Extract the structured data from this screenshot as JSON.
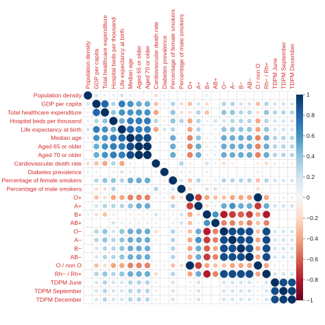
{
  "chart_data": {
    "type": "heatmap",
    "title": "",
    "labels": [
      "Population density",
      "GDP per capita",
      "Total healthcare expenditure",
      "Hospital beds per thousand",
      "Life expectancy at birth",
      "Median age",
      "Aged 65 or older",
      "Aged 70 or older",
      "Cardiovascular death rate",
      "Diabetes prevalence",
      "Percentage of female smokers",
      "Percentage of male smokers",
      "O+",
      "A+",
      "B+",
      "AB+",
      "O−",
      "A−",
      "B−",
      "AB−",
      "O / non O",
      "Rh− / Rh+",
      "TDPM June",
      "TDPM September",
      "TDPM December"
    ],
    "matrix": [
      [
        1.0,
        0.2,
        0.1,
        0.1,
        0.2,
        0.1,
        0.0,
        0.0,
        -0.2,
        0.1,
        0.0,
        0.0,
        0.0,
        0.0,
        0.1,
        0.0,
        0.0,
        0.0,
        0.0,
        0.0,
        0.0,
        0.0,
        0.0,
        0.0,
        0.0
      ],
      [
        0.2,
        1.0,
        0.8,
        0.3,
        0.7,
        0.6,
        0.5,
        0.5,
        -0.3,
        0.1,
        0.3,
        -0.2,
        -0.3,
        0.2,
        -0.2,
        0.0,
        0.3,
        0.3,
        0.2,
        0.2,
        -0.3,
        0.3,
        0.2,
        0.2,
        0.2
      ],
      [
        0.1,
        0.8,
        1.0,
        0.4,
        0.6,
        0.6,
        0.6,
        0.6,
        -0.4,
        0.0,
        0.4,
        -0.2,
        -0.2,
        0.3,
        -0.3,
        0.0,
        0.4,
        0.4,
        0.3,
        0.3,
        -0.2,
        0.4,
        0.3,
        0.3,
        0.3
      ],
      [
        0.1,
        0.3,
        0.4,
        1.0,
        0.5,
        0.7,
        0.7,
        0.7,
        0.3,
        -0.1,
        0.4,
        0.3,
        -0.4,
        0.3,
        0.1,
        0.2,
        0.2,
        0.3,
        0.3,
        0.3,
        -0.4,
        0.3,
        0.2,
        0.2,
        0.2
      ],
      [
        0.2,
        0.7,
        0.6,
        0.5,
        1.0,
        0.8,
        0.7,
        0.7,
        -0.4,
        0.2,
        0.3,
        0.0,
        -0.4,
        0.3,
        0.0,
        0.1,
        0.4,
        0.4,
        0.4,
        0.4,
        -0.4,
        0.4,
        0.2,
        0.2,
        0.2
      ],
      [
        0.1,
        0.6,
        0.6,
        0.7,
        0.8,
        1.0,
        0.9,
        0.9,
        -0.1,
        0.1,
        0.5,
        0.1,
        -0.5,
        0.4,
        -0.1,
        0.1,
        0.5,
        0.5,
        0.5,
        0.5,
        -0.5,
        0.5,
        0.3,
        0.3,
        0.3
      ],
      [
        0.0,
        0.5,
        0.6,
        0.7,
        0.7,
        0.9,
        1.0,
        1.0,
        0.0,
        0.0,
        0.5,
        0.1,
        -0.5,
        0.5,
        -0.1,
        0.1,
        0.5,
        0.5,
        0.5,
        0.5,
        -0.5,
        0.5,
        0.3,
        0.3,
        0.3
      ],
      [
        0.0,
        0.5,
        0.6,
        0.7,
        0.7,
        0.9,
        1.0,
        1.0,
        0.0,
        0.0,
        0.5,
        0.1,
        -0.5,
        0.5,
        -0.1,
        0.1,
        0.5,
        0.5,
        0.5,
        0.5,
        -0.5,
        0.5,
        0.3,
        0.3,
        0.3
      ],
      [
        -0.2,
        -0.3,
        -0.4,
        0.3,
        -0.4,
        -0.1,
        0.0,
        0.0,
        1.0,
        0.1,
        0.0,
        0.3,
        -0.1,
        0.0,
        0.2,
        0.1,
        -0.2,
        -0.1,
        0.0,
        0.0,
        -0.1,
        -0.2,
        -0.1,
        -0.1,
        -0.1
      ],
      [
        0.1,
        0.1,
        0.0,
        -0.1,
        0.2,
        0.1,
        0.0,
        0.0,
        0.1,
        1.0,
        -0.1,
        0.1,
        0.1,
        0.0,
        0.1,
        0.0,
        0.0,
        0.0,
        0.0,
        0.0,
        0.1,
        0.0,
        0.0,
        0.0,
        0.0
      ],
      [
        0.0,
        0.3,
        0.4,
        0.4,
        0.3,
        0.5,
        0.5,
        0.5,
        0.0,
        -0.1,
        1.0,
        0.2,
        -0.3,
        0.3,
        -0.1,
        0.1,
        0.3,
        0.3,
        0.3,
        0.3,
        -0.3,
        0.3,
        0.2,
        0.2,
        0.2
      ],
      [
        0.0,
        -0.2,
        -0.2,
        0.3,
        0.0,
        0.1,
        0.1,
        0.1,
        0.3,
        0.1,
        0.2,
        1.0,
        -0.2,
        0.0,
        0.2,
        0.2,
        -0.1,
        0.0,
        0.0,
        0.0,
        -0.2,
        0.0,
        0.0,
        0.0,
        0.0
      ],
      [
        0.0,
        -0.3,
        -0.2,
        -0.4,
        -0.4,
        -0.5,
        -0.5,
        -0.5,
        -0.1,
        0.1,
        -0.3,
        -0.2,
        1.0,
        -0.7,
        -0.4,
        -0.3,
        -0.3,
        -0.4,
        -0.4,
        -0.4,
        1.0,
        -0.4,
        -0.1,
        -0.1,
        -0.1
      ],
      [
        0.0,
        0.2,
        0.3,
        0.3,
        0.3,
        0.4,
        0.5,
        0.5,
        0.0,
        0.0,
        0.3,
        0.0,
        -0.7,
        1.0,
        -0.2,
        0.1,
        0.5,
        0.6,
        0.5,
        0.5,
        -0.7,
        0.5,
        0.2,
        0.2,
        0.2
      ],
      [
        0.1,
        -0.2,
        -0.3,
        0.1,
        0.0,
        -0.1,
        -0.1,
        -0.1,
        0.2,
        0.1,
        -0.1,
        0.2,
        -0.4,
        -0.2,
        1.0,
        0.6,
        -0.8,
        -0.7,
        -0.6,
        -0.7,
        -0.4,
        -0.8,
        0.0,
        0.0,
        0.0
      ],
      [
        0.0,
        0.0,
        0.0,
        0.2,
        0.1,
        0.1,
        0.1,
        0.1,
        0.1,
        0.0,
        0.1,
        0.2,
        -0.3,
        0.1,
        0.6,
        1.0,
        -0.5,
        -0.5,
        -0.4,
        -0.5,
        -0.3,
        -0.5,
        0.0,
        0.0,
        0.0
      ],
      [
        0.0,
        0.3,
        0.4,
        0.2,
        0.4,
        0.5,
        0.5,
        0.5,
        -0.2,
        0.0,
        0.3,
        -0.1,
        -0.3,
        0.5,
        -0.8,
        -0.5,
        1.0,
        0.9,
        0.9,
        0.9,
        -0.3,
        0.9,
        0.2,
        0.2,
        0.2
      ],
      [
        0.0,
        0.3,
        0.4,
        0.3,
        0.4,
        0.5,
        0.5,
        0.5,
        -0.1,
        0.0,
        0.3,
        0.0,
        -0.4,
        0.6,
        -0.7,
        -0.5,
        0.9,
        1.0,
        0.9,
        0.9,
        -0.4,
        0.9,
        0.2,
        0.2,
        0.2
      ],
      [
        0.0,
        0.2,
        0.3,
        0.3,
        0.4,
        0.5,
        0.5,
        0.5,
        0.0,
        0.0,
        0.3,
        0.0,
        -0.4,
        0.5,
        -0.6,
        -0.4,
        0.9,
        0.9,
        1.0,
        0.9,
        -0.4,
        0.9,
        0.2,
        0.2,
        0.2
      ],
      [
        0.0,
        0.2,
        0.3,
        0.3,
        0.4,
        0.5,
        0.5,
        0.5,
        0.0,
        0.0,
        0.3,
        0.0,
        -0.4,
        0.5,
        -0.7,
        -0.5,
        0.9,
        0.9,
        0.9,
        1.0,
        -0.4,
        0.9,
        0.2,
        0.2,
        0.2
      ],
      [
        0.0,
        -0.3,
        -0.2,
        -0.4,
        -0.4,
        -0.5,
        -0.5,
        -0.5,
        -0.1,
        0.1,
        -0.3,
        -0.2,
        1.0,
        -0.7,
        -0.4,
        -0.3,
        -0.3,
        -0.4,
        -0.4,
        -0.4,
        1.0,
        -0.4,
        -0.1,
        -0.1,
        -0.1
      ],
      [
        0.0,
        0.3,
        0.4,
        0.3,
        0.4,
        0.5,
        0.5,
        0.5,
        -0.2,
        0.0,
        0.3,
        0.0,
        -0.4,
        0.5,
        -0.8,
        -0.5,
        0.9,
        0.9,
        0.9,
        0.9,
        -0.4,
        1.0,
        0.2,
        0.2,
        0.2
      ],
      [
        0.0,
        0.2,
        0.3,
        0.2,
        0.2,
        0.3,
        0.3,
        0.3,
        -0.1,
        0.0,
        0.2,
        0.0,
        -0.1,
        0.2,
        0.0,
        0.0,
        0.2,
        0.2,
        0.2,
        0.2,
        -0.1,
        0.2,
        1.0,
        0.9,
        0.9
      ],
      [
        0.0,
        0.2,
        0.3,
        0.2,
        0.2,
        0.3,
        0.3,
        0.3,
        -0.1,
        0.0,
        0.2,
        0.0,
        -0.1,
        0.2,
        0.0,
        0.0,
        0.2,
        0.2,
        0.2,
        0.2,
        -0.1,
        0.2,
        0.9,
        1.0,
        0.95
      ],
      [
        0.0,
        0.2,
        0.3,
        0.2,
        0.2,
        0.3,
        0.3,
        0.3,
        -0.1,
        0.0,
        0.2,
        0.0,
        -0.1,
        0.2,
        0.0,
        0.0,
        0.2,
        0.2,
        0.2,
        0.2,
        -0.1,
        0.2,
        0.9,
        0.95,
        1.0
      ]
    ],
    "value_range": [
      -1,
      1
    ],
    "colorbar_ticks": [
      "1",
      "0.8",
      "0.6",
      "0.4",
      "0.2",
      "0",
      "−0.2",
      "−0.4",
      "−0.6",
      "−0.8",
      "−1"
    ],
    "colorbar_tick_values": [
      1,
      0.8,
      0.6,
      0.4,
      0.2,
      0,
      -0.2,
      -0.4,
      -0.6,
      -0.8,
      -1
    ],
    "colors": {
      "positive_end": "#053061",
      "positive_mid": "#4393c3",
      "neutral": "#f7f7f7",
      "negative_mid": "#d6604d",
      "negative_end": "#67001f",
      "label": "#d42a2a",
      "grid": "#d9d9d9"
    },
    "grid": true,
    "legend_position": "right",
    "marker": "circle"
  }
}
